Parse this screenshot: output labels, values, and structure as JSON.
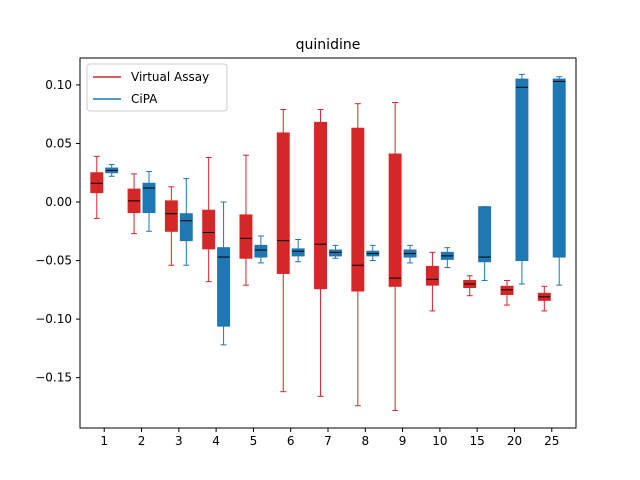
{
  "chart_data": {
    "type": "box",
    "title": "quinidine",
    "xlabel": "",
    "ylabel": "",
    "categories": [
      "1",
      "2",
      "3",
      "4",
      "5",
      "6",
      "7",
      "8",
      "9",
      "10",
      "15",
      "20",
      "25"
    ],
    "ylim": [
      -0.193,
      0.123
    ],
    "yticks": [
      0.1,
      0.05,
      0.0,
      -0.05,
      -0.1,
      -0.15
    ],
    "ytick_labels": [
      "0.10",
      "0.05",
      "0.00",
      "−0.05",
      "−0.10",
      "−0.15"
    ],
    "grid": false,
    "legend_position": "upper-left",
    "series": [
      {
        "name": "Virtual Assay",
        "color": "#d62728",
        "boxes": [
          {
            "whislo": -0.014,
            "q1": 0.008,
            "med": 0.016,
            "q3": 0.025,
            "whishi": 0.039
          },
          {
            "whislo": -0.027,
            "q1": -0.009,
            "med": 0.001,
            "q3": 0.011,
            "whishi": 0.024
          },
          {
            "whislo": -0.054,
            "q1": -0.025,
            "med": -0.01,
            "q3": 0.001,
            "whishi": 0.013
          },
          {
            "whislo": -0.068,
            "q1": -0.04,
            "med": -0.026,
            "q3": -0.007,
            "whishi": 0.038
          },
          {
            "whislo": -0.071,
            "q1": -0.048,
            "med": -0.031,
            "q3": -0.011,
            "whishi": 0.04
          },
          {
            "whislo": -0.162,
            "q1": -0.061,
            "med": -0.033,
            "q3": 0.059,
            "whishi": 0.079
          },
          {
            "whislo": -0.166,
            "q1": -0.074,
            "med": -0.036,
            "q3": 0.068,
            "whishi": 0.079
          },
          {
            "whislo": -0.174,
            "q1": -0.076,
            "med": -0.054,
            "q3": 0.063,
            "whishi": 0.084
          },
          {
            "whislo": -0.178,
            "q1": -0.072,
            "med": -0.065,
            "q3": 0.041,
            "whishi": 0.085
          },
          {
            "whislo": -0.093,
            "q1": -0.071,
            "med": -0.066,
            "q3": -0.055,
            "whishi": -0.043
          },
          {
            "whislo": -0.08,
            "q1": -0.073,
            "med": -0.07,
            "q3": -0.067,
            "whishi": -0.063
          },
          {
            "whislo": -0.088,
            "q1": -0.079,
            "med": -0.075,
            "q3": -0.072,
            "whishi": -0.067
          },
          {
            "whislo": -0.093,
            "q1": -0.084,
            "med": -0.081,
            "q3": -0.078,
            "whishi": -0.072
          }
        ]
      },
      {
        "name": "CiPA",
        "color": "#1f77b4",
        "boxes": [
          {
            "whislo": 0.022,
            "q1": 0.025,
            "med": 0.027,
            "q3": 0.029,
            "whishi": 0.032
          },
          {
            "whislo": -0.025,
            "q1": -0.009,
            "med": 0.012,
            "q3": 0.016,
            "whishi": 0.026
          },
          {
            "whislo": -0.054,
            "q1": -0.033,
            "med": -0.016,
            "q3": -0.01,
            "whishi": 0.02
          },
          {
            "whislo": -0.122,
            "q1": -0.106,
            "med": -0.047,
            "q3": -0.039,
            "whishi": 0.0
          },
          {
            "whislo": -0.052,
            "q1": -0.047,
            "med": -0.041,
            "q3": -0.037,
            "whishi": -0.029
          },
          {
            "whislo": -0.051,
            "q1": -0.046,
            "med": -0.042,
            "q3": -0.04,
            "whishi": -0.032
          },
          {
            "whislo": -0.048,
            "q1": -0.046,
            "med": -0.043,
            "q3": -0.041,
            "whishi": -0.037
          },
          {
            "whislo": -0.05,
            "q1": -0.046,
            "med": -0.044,
            "q3": -0.042,
            "whishi": -0.037
          },
          {
            "whislo": -0.052,
            "q1": -0.047,
            "med": -0.044,
            "q3": -0.041,
            "whishi": -0.037
          },
          {
            "whislo": -0.056,
            "q1": -0.049,
            "med": -0.046,
            "q3": -0.043,
            "whishi": -0.039
          },
          {
            "whislo": -0.067,
            "q1": -0.051,
            "med": -0.047,
            "q3": -0.004,
            "whishi": -0.004
          },
          {
            "whislo": -0.07,
            "q1": -0.05,
            "med": 0.098,
            "q3": 0.105,
            "whishi": 0.109
          },
          {
            "whislo": -0.071,
            "q1": -0.047,
            "med": 0.103,
            "q3": 0.105,
            "whishi": 0.107
          }
        ]
      }
    ]
  }
}
